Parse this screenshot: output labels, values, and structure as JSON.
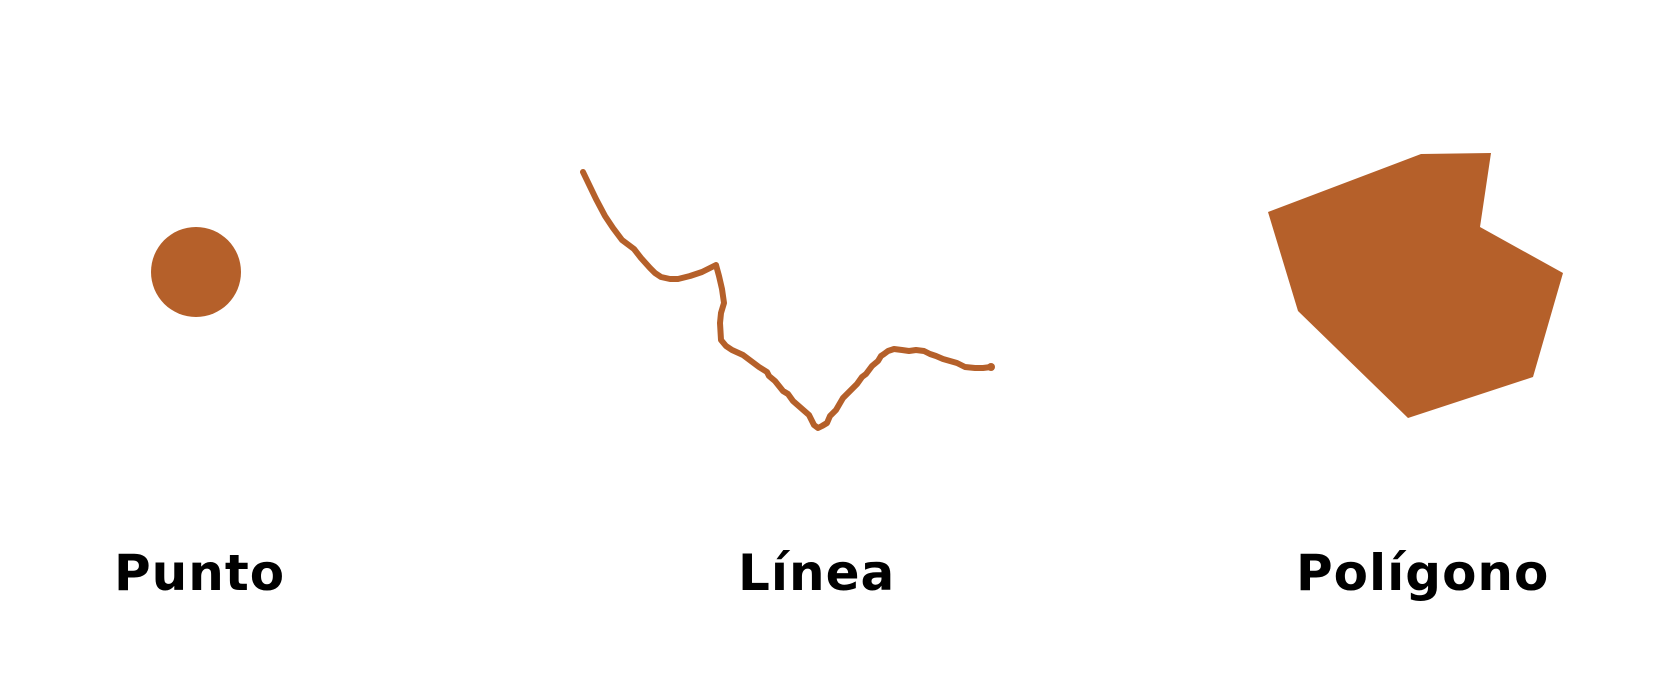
{
  "colors": {
    "feature": "#b5602a",
    "text": "#000000",
    "background": "#ffffff"
  },
  "figures": [
    {
      "id": "punto",
      "geometry": "point",
      "label": "Punto"
    },
    {
      "id": "linea",
      "geometry": "line",
      "label": "Línea"
    },
    {
      "id": "poligono",
      "geometry": "polygon",
      "label": "Polígono"
    }
  ]
}
